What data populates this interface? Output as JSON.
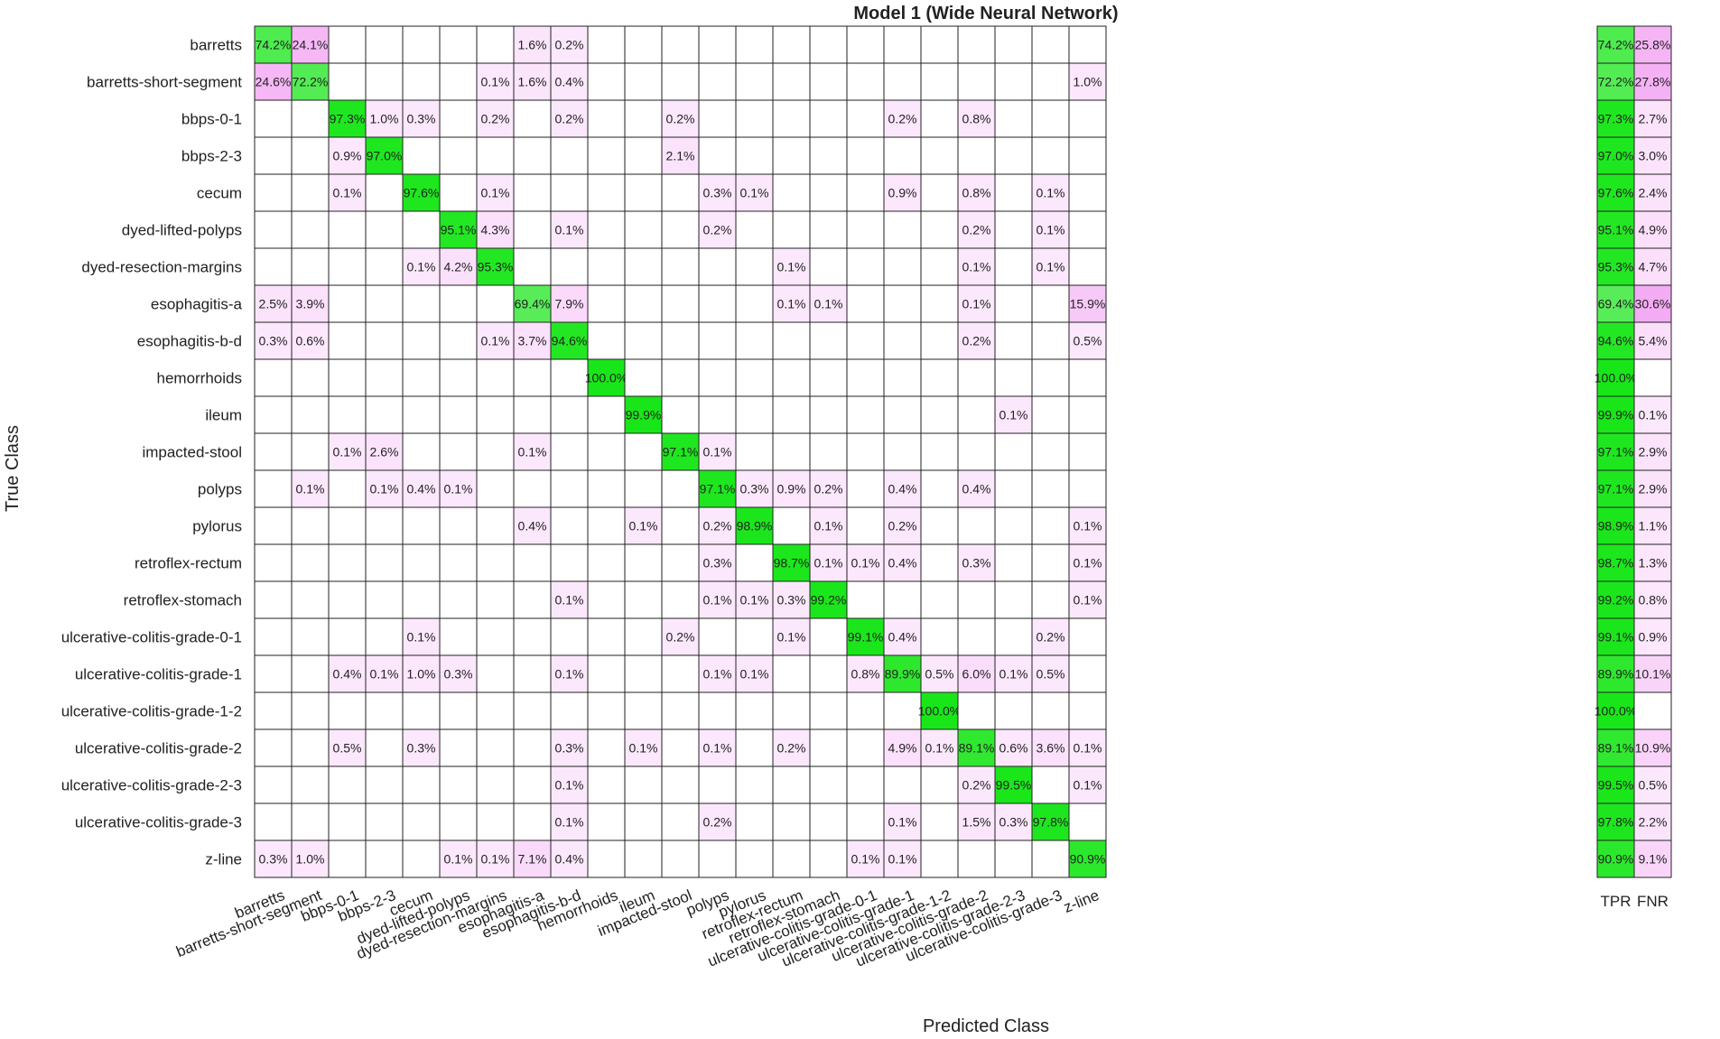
{
  "chart_data": {
    "type": "heatmap",
    "title": "Model 1 (Wide Neural Network)",
    "xlabel": "Predicted Class",
    "ylabel": "True Class",
    "classes": [
      "barretts",
      "barretts-short-segment",
      "bbps-0-1",
      "bbps-2-3",
      "cecum",
      "dyed-lifted-polyps",
      "dyed-resection-margins",
      "esophagitis-a",
      "esophagitis-b-d",
      "hemorrhoids",
      "ileum",
      "impacted-stool",
      "polyps",
      "pylorus",
      "retroflex-rectum",
      "retroflex-stomach",
      "ulcerative-colitis-grade-0-1",
      "ulcerative-colitis-grade-1",
      "ulcerative-colitis-grade-1-2",
      "ulcerative-colitis-grade-2",
      "ulcerative-colitis-grade-2-3",
      "ulcerative-colitis-grade-3",
      "z-line"
    ],
    "summary_columns": [
      "TPR",
      "FNR"
    ],
    "unit": "%",
    "matrix": [
      [
        74.2,
        24.1,
        null,
        null,
        null,
        null,
        null,
        1.6,
        0.2,
        null,
        null,
        null,
        null,
        null,
        null,
        null,
        null,
        null,
        null,
        null,
        null,
        null,
        null
      ],
      [
        24.6,
        72.2,
        null,
        null,
        null,
        null,
        0.1,
        1.6,
        0.4,
        null,
        null,
        null,
        null,
        null,
        null,
        null,
        null,
        null,
        null,
        null,
        null,
        null,
        1.0
      ],
      [
        null,
        null,
        97.3,
        1.0,
        0.3,
        null,
        0.2,
        null,
        0.2,
        null,
        null,
        0.2,
        null,
        null,
        null,
        null,
        null,
        0.2,
        null,
        0.8,
        null,
        null,
        null
      ],
      [
        null,
        null,
        0.9,
        97.0,
        null,
        null,
        null,
        null,
        null,
        null,
        null,
        2.1,
        null,
        null,
        null,
        null,
        null,
        null,
        null,
        null,
        null,
        null,
        null
      ],
      [
        null,
        null,
        0.1,
        null,
        97.6,
        null,
        0.1,
        null,
        null,
        null,
        null,
        null,
        0.3,
        0.1,
        null,
        null,
        null,
        0.9,
        null,
        0.8,
        null,
        0.1,
        null
      ],
      [
        null,
        null,
        null,
        null,
        null,
        95.1,
        4.3,
        null,
        0.1,
        null,
        null,
        null,
        0.2,
        null,
        null,
        null,
        null,
        null,
        null,
        0.2,
        null,
        0.1,
        null
      ],
      [
        null,
        null,
        null,
        null,
        0.1,
        4.2,
        95.3,
        null,
        null,
        null,
        null,
        null,
        null,
        null,
        0.1,
        null,
        null,
        null,
        null,
        0.1,
        null,
        0.1,
        null
      ],
      [
        2.5,
        3.9,
        null,
        null,
        null,
        null,
        null,
        69.4,
        7.9,
        null,
        null,
        null,
        null,
        null,
        0.1,
        0.1,
        null,
        null,
        null,
        0.1,
        null,
        null,
        15.9
      ],
      [
        0.3,
        0.6,
        null,
        null,
        null,
        null,
        0.1,
        3.7,
        94.6,
        null,
        null,
        null,
        null,
        null,
        null,
        null,
        null,
        null,
        null,
        0.2,
        null,
        null,
        0.5
      ],
      [
        null,
        null,
        null,
        null,
        null,
        null,
        null,
        null,
        null,
        100.0,
        null,
        null,
        null,
        null,
        null,
        null,
        null,
        null,
        null,
        null,
        null,
        null,
        null
      ],
      [
        null,
        null,
        null,
        null,
        null,
        null,
        null,
        null,
        null,
        null,
        99.9,
        null,
        null,
        null,
        null,
        null,
        null,
        null,
        null,
        null,
        0.1,
        null,
        null
      ],
      [
        null,
        null,
        0.1,
        2.6,
        null,
        null,
        null,
        0.1,
        null,
        null,
        null,
        97.1,
        0.1,
        null,
        null,
        null,
        null,
        null,
        null,
        null,
        null,
        null,
        null
      ],
      [
        null,
        0.1,
        null,
        0.1,
        0.4,
        0.1,
        null,
        null,
        null,
        null,
        null,
        null,
        97.1,
        0.3,
        0.9,
        0.2,
        null,
        0.4,
        null,
        0.4,
        null,
        null,
        null
      ],
      [
        null,
        null,
        null,
        null,
        null,
        null,
        null,
        0.4,
        null,
        null,
        0.1,
        null,
        0.2,
        98.9,
        null,
        0.1,
        null,
        0.2,
        null,
        null,
        null,
        null,
        0.1
      ],
      [
        null,
        null,
        null,
        null,
        null,
        null,
        null,
        null,
        null,
        null,
        null,
        null,
        0.3,
        null,
        98.7,
        0.1,
        0.1,
        0.4,
        null,
        0.3,
        null,
        null,
        0.1
      ],
      [
        null,
        null,
        null,
        null,
        null,
        null,
        null,
        null,
        0.1,
        null,
        null,
        null,
        0.1,
        0.1,
        0.3,
        99.2,
        null,
        null,
        null,
        null,
        null,
        null,
        0.1
      ],
      [
        null,
        null,
        null,
        null,
        0.1,
        null,
        null,
        null,
        null,
        null,
        null,
        0.2,
        null,
        null,
        0.1,
        null,
        99.1,
        0.4,
        null,
        null,
        null,
        0.2,
        null
      ],
      [
        null,
        null,
        0.4,
        0.1,
        1.0,
        0.3,
        null,
        null,
        0.1,
        null,
        null,
        null,
        0.1,
        0.1,
        null,
        null,
        0.8,
        89.9,
        0.5,
        6.0,
        0.1,
        0.5,
        null
      ],
      [
        null,
        null,
        null,
        null,
        null,
        null,
        null,
        null,
        null,
        null,
        null,
        null,
        null,
        null,
        null,
        null,
        null,
        null,
        100.0,
        null,
        null,
        null,
        null
      ],
      [
        null,
        null,
        0.5,
        null,
        0.3,
        null,
        null,
        null,
        0.3,
        null,
        0.1,
        null,
        0.1,
        null,
        0.2,
        null,
        null,
        4.9,
        0.1,
        89.1,
        0.6,
        3.6,
        0.1
      ],
      [
        null,
        null,
        null,
        null,
        null,
        null,
        null,
        null,
        0.1,
        null,
        null,
        null,
        null,
        null,
        null,
        null,
        null,
        null,
        null,
        0.2,
        99.5,
        null,
        0.1
      ],
      [
        null,
        null,
        null,
        null,
        null,
        null,
        null,
        null,
        0.1,
        null,
        null,
        null,
        0.2,
        null,
        null,
        null,
        null,
        0.1,
        null,
        1.5,
        0.3,
        97.8,
        null
      ],
      [
        0.3,
        1.0,
        null,
        null,
        null,
        0.1,
        0.1,
        7.1,
        0.4,
        null,
        null,
        null,
        null,
        null,
        null,
        null,
        0.1,
        0.1,
        null,
        null,
        null,
        null,
        90.9
      ]
    ],
    "tpr": [
      74.2,
      72.2,
      97.3,
      97.0,
      97.6,
      95.1,
      95.3,
      69.4,
      94.6,
      100.0,
      99.9,
      97.1,
      97.1,
      98.9,
      98.7,
      99.2,
      99.1,
      89.9,
      100.0,
      89.1,
      99.5,
      97.8,
      90.9
    ],
    "fnr": [
      25.8,
      27.8,
      2.7,
      3.0,
      2.4,
      4.9,
      4.7,
      30.6,
      5.4,
      null,
      0.1,
      2.9,
      2.9,
      1.1,
      1.3,
      0.8,
      0.9,
      10.1,
      null,
      10.9,
      0.5,
      2.2,
      9.1
    ],
    "colors": {
      "correct": "#19e619",
      "error": "#e020e0",
      "grid": "#222222",
      "background": "#ffffff"
    }
  }
}
